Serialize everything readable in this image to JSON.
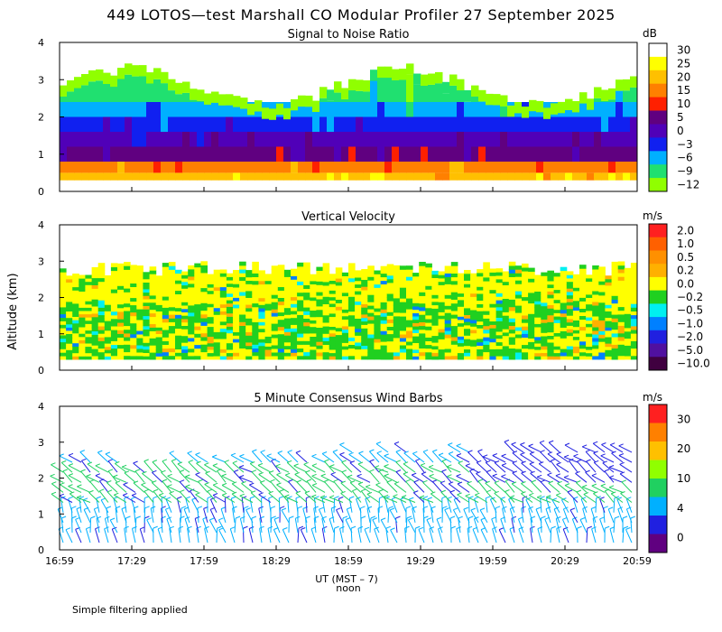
{
  "title": "449 LOTOS—test Marshall CO Modular Profiler 27 September 2025",
  "ylabel": "Altitude (km)",
  "xlabel": "UT  (MST – 7)",
  "noon_label": "noon",
  "footer": "Simple filtering applied",
  "x_ticks": [
    "16:59",
    "17:29",
    "17:59",
    "18:29",
    "18:59",
    "19:29",
    "19:59",
    "20:29",
    "20:59"
  ],
  "y_ticks": [
    "0",
    "1",
    "2",
    "3",
    "4"
  ],
  "chart_data": [
    {
      "type": "heatmap",
      "title": "Signal to Noise Ratio",
      "unit": "dB",
      "ylim": [
        0,
        4
      ],
      "colorbar_labels": [
        "30",
        "25",
        "20",
        "15",
        "10",
        "5",
        "0",
        "−3",
        "−6",
        "−9",
        "−12"
      ],
      "colors": [
        "#ffffff",
        "#ffff00",
        "#ffc000",
        "#ff8000",
        "#ff2000",
        "#600080",
        "#5000b8",
        "#1020f0",
        "#00b0ff",
        "#20e070",
        "#90ff00"
      ]
    },
    {
      "type": "heatmap",
      "title": "Vertical Velocity",
      "unit": "m/s",
      "ylim": [
        0,
        4
      ],
      "colorbar_labels": [
        "2.0",
        "1.0",
        "0.5",
        "0.2",
        "0.0",
        "−0.2",
        "−0.5",
        "−1.0",
        "−2.0",
        "−5.0",
        "−10.0"
      ],
      "colors": [
        "#ff2020",
        "#ff6000",
        "#ff9000",
        "#ffb000",
        "#ffff00",
        "#20d020",
        "#00f0f0",
        "#0080ff",
        "#2020e0",
        "#5010a0",
        "#400040"
      ]
    },
    {
      "type": "wind_barbs",
      "title": "5 Minute Consensus Wind Barbs",
      "unit": "m/s",
      "ylim": [
        0,
        4
      ],
      "colorbar_labels": [
        "30",
        "20",
        "10",
        "4",
        "0"
      ],
      "colors": [
        "#ff2020",
        "#ff8000",
        "#ffc000",
        "#90ff00",
        "#20d060",
        "#00b0ff",
        "#2020e0",
        "#600080"
      ]
    }
  ]
}
